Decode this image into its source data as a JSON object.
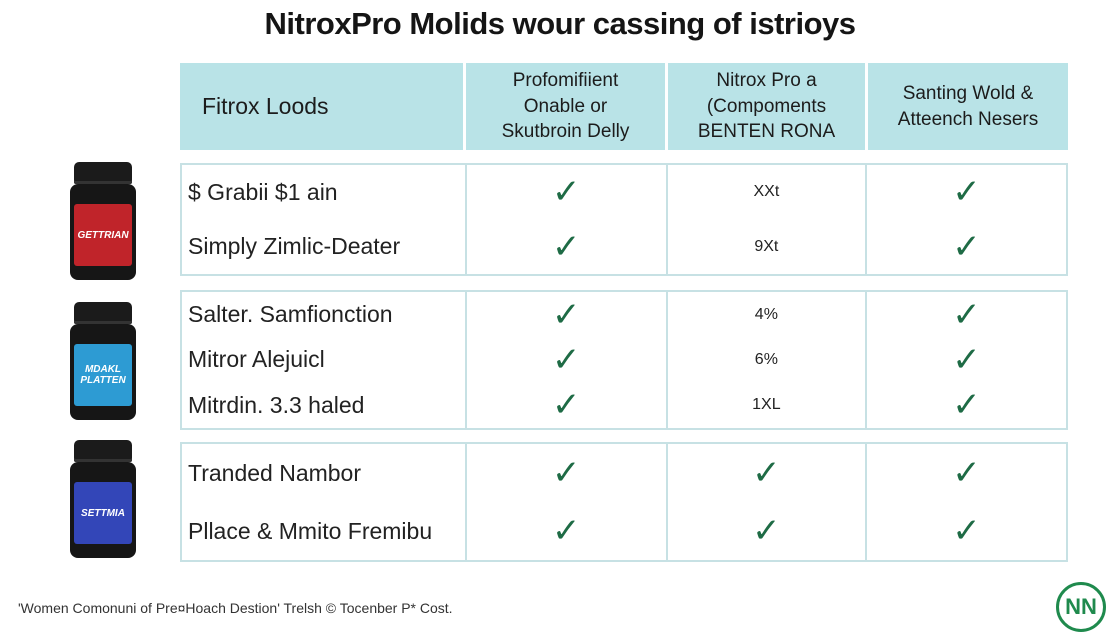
{
  "title": "NitroxPro Molids wour cassing of istrioys",
  "header": {
    "col1": "Fitrox Loods",
    "col2": "Profomifiient\nOnable or\nSkutbroin Delly",
    "col3": "Nitrox Pro a\n(Compoments\nBENTEN RONA",
    "col4": "Santing Wold &\nAtteench Nesers"
  },
  "groups": [
    {
      "rows": [
        {
          "label": "$ Grabii $1 ain",
          "col3": "XXt"
        },
        {
          "label": "Simply Zimlic-Deater",
          "col3": "9Xt"
        }
      ]
    },
    {
      "rows": [
        {
          "label": "Salter. Samfionction",
          "col3": "4%"
        },
        {
          "label": "Mitror Alejuicl",
          "col3": "6%"
        },
        {
          "label": "Mitrdin. 3.3 haled",
          "col3": "1XL"
        }
      ]
    },
    {
      "rows": [
        {
          "label": "Tranded Nambor"
        },
        {
          "label": "Pllace & Mmito Fremibu"
        }
      ]
    }
  ],
  "bottles": [
    {
      "label": "GETTRIAN",
      "color": "#c0242a"
    },
    {
      "label": "MDAKL\nPLATTEN",
      "color": "#2d9bd3"
    },
    {
      "label": "SETTMIA",
      "color": "#3346b8"
    }
  ],
  "check_symbol": "✓",
  "footer": "'Women Comonuni of Pre¤Hoach Destion' Trelsh © Tocenber P* Cost.",
  "logo": "NN"
}
